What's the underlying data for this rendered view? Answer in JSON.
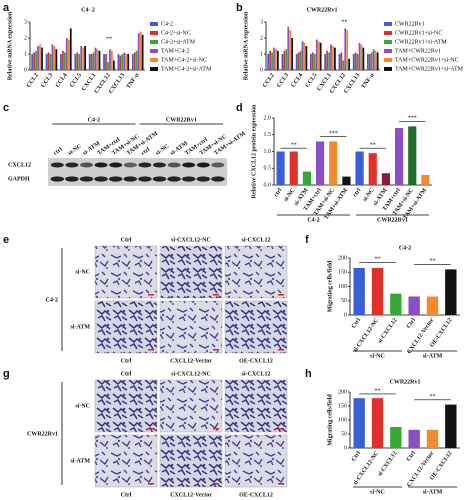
{
  "chart_data": [
    {
      "type": "bar",
      "panel_label": "a",
      "title": "C4- 2",
      "y_label": "Relative mRNA expression",
      "categories": [
        "CCL2",
        "CCL3",
        "CCL4",
        "CCL5",
        "CXCL1",
        "CXCL12",
        "CXCL13",
        "TNF-α"
      ],
      "series": [
        {
          "name": "C4-2",
          "color": "#3b5fd6",
          "values": [
            1,
            1,
            1,
            1,
            1,
            1,
            1,
            1
          ]
        },
        {
          "name": "C4-2+si-NC",
          "color": "#e0302a",
          "values": [
            1.1,
            1.1,
            1.2,
            1.1,
            1.0,
            1.0,
            0.9,
            1.1
          ]
        },
        {
          "name": "C4-2+si-ATM",
          "color": "#36a836",
          "values": [
            1.2,
            1.0,
            1.1,
            1.0,
            1.1,
            0.5,
            1.0,
            1.2
          ]
        },
        {
          "name": "TAM+C4-2",
          "color": "#8a4fc4",
          "values": [
            1.5,
            1.6,
            2.0,
            1.5,
            1.4,
            1.3,
            1.1,
            2.3
          ]
        },
        {
          "name": "TAM+C4-2+si-NC",
          "color": "#f28a2e",
          "values": [
            1.6,
            1.5,
            1.9,
            1.4,
            1.3,
            1.2,
            1.0,
            2.4
          ]
        },
        {
          "name": "TAM+C4-2+si-ATM",
          "color": "#111111",
          "values": [
            1.4,
            1.3,
            2.6,
            1.5,
            1.2,
            0.6,
            1.0,
            2.2
          ]
        }
      ],
      "ylim": [
        0,
        3
      ],
      "yticks": [
        0,
        1,
        2,
        3
      ],
      "annotations": [
        "**"
      ]
    },
    {
      "type": "bar",
      "panel_label": "b",
      "title": "CWR22Rv1",
      "y_label": "Relative mRNA expression",
      "categories": [
        "CCL2",
        "CCL3",
        "CCL4",
        "CCL5",
        "CXCL1",
        "CXCL12",
        "CXCL13",
        "TNF-α"
      ],
      "series": [
        {
          "name": "CWR22Rv1",
          "color": "#3b5fd6",
          "values": [
            1,
            1,
            1,
            1,
            1,
            1,
            1,
            1
          ]
        },
        {
          "name": "CWR22Rv1+si-NC",
          "color": "#e0302a",
          "values": [
            1.2,
            1.2,
            1.1,
            1.1,
            1.2,
            1.1,
            1.1,
            1.0
          ]
        },
        {
          "name": "CWR22Rv1+si-ATM",
          "color": "#36a836",
          "values": [
            1.1,
            1.3,
            1.2,
            1.0,
            1.1,
            0.6,
            1.0,
            1.1
          ]
        },
        {
          "name": "TAM+CWR22Rv1",
          "color": "#8a4fc4",
          "values": [
            1.4,
            2.7,
            1.8,
            1.9,
            1.6,
            2.6,
            1.7,
            1.3
          ]
        },
        {
          "name": "TAM+CWR22Rv1+si-NC",
          "color": "#f28a2e",
          "values": [
            1.3,
            2.5,
            1.7,
            1.8,
            1.5,
            2.5,
            1.6,
            1.2
          ]
        },
        {
          "name": "TAM+CWR22Rv1+si-ATM",
          "color": "#111111",
          "values": [
            1.2,
            2.0,
            1.5,
            1.7,
            1.4,
            0.7,
            1.4,
            1.1
          ]
        }
      ],
      "ylim": [
        0,
        3
      ],
      "yticks": [
        0,
        1,
        2,
        3
      ],
      "annotations": [
        "**"
      ]
    },
    {
      "type": "bar",
      "panel_label": "d",
      "y_label": "Relative CXCL12 protein expression",
      "categories": [
        "ctrl",
        "si-NC",
        "si-ATM",
        "TAM+ctrl",
        "TAM+si-NC",
        "TAM+si-ATM",
        "ctrl",
        "si-NC",
        "si-ATM",
        "TAM+ctrl",
        "TAM+si-NC",
        "TAM+si-ATM"
      ],
      "values": [
        1.0,
        1.0,
        0.4,
        1.3,
        1.3,
        0.25,
        1.0,
        0.95,
        0.35,
        1.7,
        1.75,
        0.3
      ],
      "colors": [
        "#3b5fd6",
        "#e0302a",
        "#36a836",
        "#8a4fc4",
        "#f28a2e",
        "#111111",
        "#3b5fd6",
        "#e0302a",
        "#8b1c3a",
        "#8a4fc4",
        "#1f6e2a",
        "#f28a2e"
      ],
      "groups": [
        "C4-2",
        "CWR22Rv1"
      ],
      "ylim": [
        0,
        2
      ],
      "yticks": [
        {
          "value": 0,
          "label": "0.0"
        },
        {
          "value": 0.5,
          "label": "0.5"
        },
        {
          "value": 1,
          "label": "1.0"
        },
        {
          "value": 1.5,
          "label": "1.5"
        },
        {
          "value": 2,
          "label": "2.0"
        }
      ],
      "annotations": [
        "**",
        "***",
        "**",
        "***"
      ]
    },
    {
      "type": "bar",
      "panel_label": "f",
      "title": "C4-2",
      "y_label": "Migrating cells/field",
      "categories": [
        "Ctrl",
        "si-CXCL12-NC",
        "si-CXCL12",
        "Ctrl",
        "CXCL12-Vector",
        "OE-CXCL12"
      ],
      "values": [
        165,
        165,
        75,
        65,
        65,
        160
      ],
      "colors": [
        "#3b5fd6",
        "#e0302a",
        "#36a836",
        "#8a4fc4",
        "#f28a2e",
        "#111111"
      ],
      "groups": [
        "si-NC",
        "si-ATM"
      ],
      "ylim": [
        0,
        200
      ],
      "yticks": [
        0,
        50,
        100,
        150,
        200
      ],
      "annotations": [
        "**",
        "**"
      ]
    },
    {
      "type": "bar",
      "panel_label": "h",
      "title": "CWR22Rv1",
      "y_label": "Migrating cells/field",
      "categories": [
        "Ctrl",
        "si-CXCL12-NC",
        "si-CXCL12",
        "Ctrl",
        "CXCL12-Vector",
        "OE-CXCL12"
      ],
      "values": [
        178,
        178,
        75,
        65,
        65,
        155
      ],
      "colors": [
        "#3b5fd6",
        "#e0302a",
        "#36a836",
        "#8a4fc4",
        "#f28a2e",
        "#111111"
      ],
      "groups": [
        "si-NC",
        "si-ATM"
      ],
      "ylim": [
        0,
        200
      ],
      "yticks": [
        0,
        50,
        100,
        150,
        200
      ],
      "annotations": [
        "**",
        "**"
      ]
    }
  ],
  "blot": {
    "panel_label": "c",
    "groups": [
      "C4-2",
      "CWR22Rv1"
    ],
    "lanes": [
      "ctrl",
      "si-NC",
      "si-ATM",
      "TAM+ctrl",
      "TAM+si-NC",
      "TAM+si-ATM",
      "ctrl",
      "si-NC",
      "si-ATM",
      "TAM+ctrl",
      "TAM+si-NC",
      "TAM+si-ATM"
    ],
    "bands": [
      "CXCL12",
      "GAPDH"
    ]
  },
  "micrographs": [
    {
      "panel_label": "e",
      "cell_line": "C4-2",
      "top_columns": [
        "Ctrl",
        "si-CXCL12-NC",
        "si-CXCL12"
      ],
      "bottom_columns": [
        "Ctrl",
        "CXCL12-Vector",
        "OE-CXCL12"
      ],
      "rows": [
        "si-NC",
        "si-ATM"
      ]
    },
    {
      "panel_label": "g",
      "cell_line": "CWR22Rv1",
      "top_columns": [
        "Ctrl",
        "si-CXCL12-NC",
        "si-CXCL12"
      ],
      "bottom_columns": [
        "Ctrl",
        "CXCL12-Vector",
        "OE-CXCL12"
      ],
      "rows": [
        "si-NC",
        "si-ATM"
      ]
    }
  ]
}
